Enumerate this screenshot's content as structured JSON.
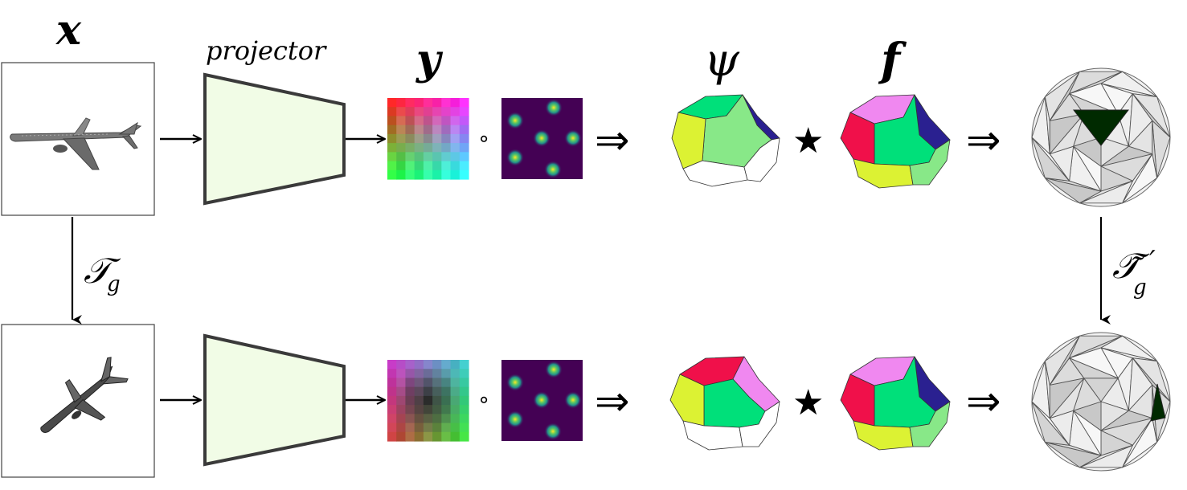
{
  "labels": {
    "x": "x",
    "projector": "projector",
    "y": "y",
    "psi": "ψ",
    "f": "f",
    "transform_input": "𝒯",
    "transform_input_sub": "g",
    "transform_output": "𝒯̃",
    "transform_output_sub": "g",
    "transform_output_prime": "′"
  },
  "operators": {
    "compose": "∘",
    "star": "★",
    "implies": "⇒"
  },
  "colors": {
    "projector_fill": "#f1fce6",
    "heatmap_bg": "#440154",
    "highlight_face": "#002a00",
    "face_green": "#00e07a",
    "face_light_green": "#88e888",
    "face_yellow": "#dcf233",
    "face_navy": "#2a2090",
    "face_pink": "#f088f0",
    "face_red": "#f0104a"
  },
  "icons": [
    "airplane-icon",
    "rotated-airplane-icon"
  ]
}
